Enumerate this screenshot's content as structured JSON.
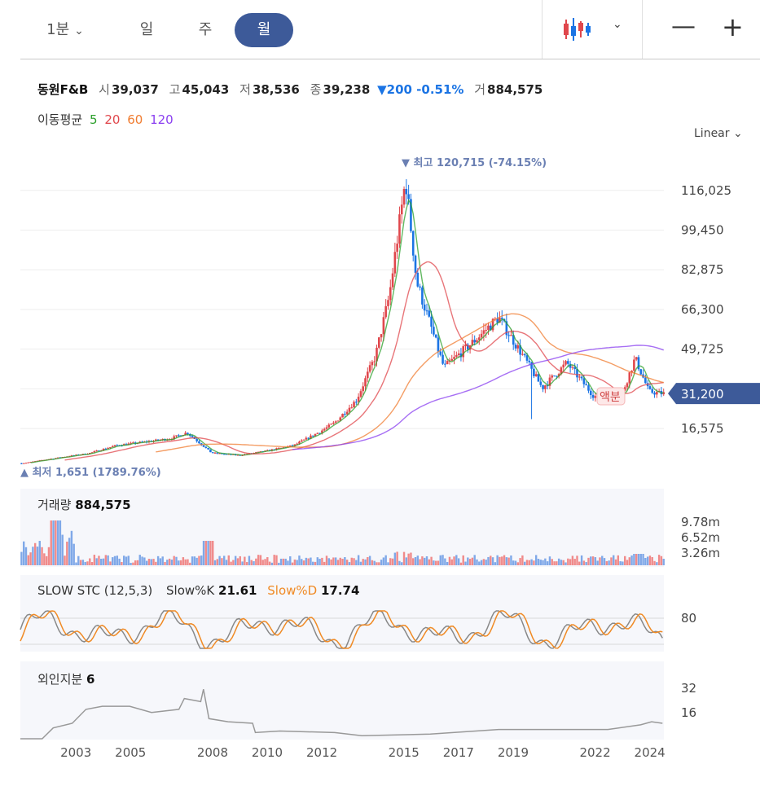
{
  "toolbar": {
    "period_label": "1분",
    "day_label": "일",
    "week_label": "주",
    "month_label": "월",
    "chart_type_icon": "candlestick-icon",
    "zoom_out_icon": "minus-icon",
    "zoom_in_icon": "plus-icon",
    "active_color": "#3d5a99"
  },
  "info": {
    "name": "동원F&B",
    "open_label": "시",
    "open": "39,037",
    "high_label": "고",
    "high": "45,043",
    "low_label": "저",
    "low": "38,536",
    "close_label": "종",
    "close": "39,238",
    "change": "▼200 -0.51%",
    "volume_label": "거",
    "volume": "884,575"
  },
  "moving_avg": {
    "label": "이동평균",
    "periods": [
      {
        "text": "5",
        "color": "#2ca02c"
      },
      {
        "text": "20",
        "color": "#e0474c"
      },
      {
        "text": "60",
        "color": "#f07c30"
      },
      {
        "text": "120",
        "color": "#8a3ff0"
      }
    ]
  },
  "scale_label": "Linear",
  "current_price_label": "31,200",
  "ex_dividend_label": "액분",
  "chart_data": {
    "type": "candlestick",
    "title": "동원F&B",
    "y_ticks": [
      "116,025",
      "99,450",
      "82,875",
      "66,300",
      "49,725",
      "16,575"
    ],
    "y_tick_values": [
      116025,
      99450,
      82875,
      66300,
      49725,
      16575
    ],
    "ylim": [
      1651,
      120715
    ],
    "x_ticks": [
      "2003",
      "2005",
      "2008",
      "2010",
      "2012",
      "2015",
      "2017",
      "2019",
      "2022",
      "2024"
    ],
    "x_tick_values": [
      2003,
      2005,
      2008,
      2010,
      2012,
      2015,
      2017,
      2019,
      2022,
      2024
    ],
    "max_annotation": "최고 120,715 (-74.15%)",
    "min_annotation": "최저 1,651 (1789.76%)",
    "price_series": [
      {
        "date": 2001.6,
        "close": 2100
      },
      {
        "date": 2003.0,
        "close": 4600
      },
      {
        "date": 2004.0,
        "close": 6200
      },
      {
        "date": 2005.0,
        "close": 9500
      },
      {
        "date": 2006.0,
        "close": 10900
      },
      {
        "date": 2007.0,
        "close": 12400
      },
      {
        "date": 2007.6,
        "close": 14900
      },
      {
        "date": 2008.5,
        "close": 6400
      },
      {
        "date": 2009.5,
        "close": 5400
      },
      {
        "date": 2010.5,
        "close": 7200
      },
      {
        "date": 2011.5,
        "close": 9500
      },
      {
        "date": 2012.5,
        "close": 15500
      },
      {
        "date": 2013.0,
        "close": 19000
      },
      {
        "date": 2013.8,
        "close": 28500
      },
      {
        "date": 2014.5,
        "close": 47000
      },
      {
        "date": 2015.0,
        "close": 72000
      },
      {
        "date": 2015.6,
        "close": 120715
      },
      {
        "date": 2016.0,
        "close": 78000
      },
      {
        "date": 2016.5,
        "close": 60000
      },
      {
        "date": 2017.0,
        "close": 42000
      },
      {
        "date": 2018.0,
        "close": 52000
      },
      {
        "date": 2019.0,
        "close": 63000
      },
      {
        "date": 2020.0,
        "close": 45000
      },
      {
        "date": 2020.6,
        "close": 33500
      },
      {
        "date": 2021.5,
        "close": 44000
      },
      {
        "date": 2022.5,
        "close": 30000
      },
      {
        "date": 2023.5,
        "close": 30500
      },
      {
        "date": 2024.0,
        "close": 46000
      },
      {
        "date": 2024.5,
        "close": 32000
      },
      {
        "date": 2025.0,
        "close": 31200
      }
    ],
    "volume": {
      "label": "거래량",
      "value": "884,575",
      "y_ticks": [
        "9.78m",
        "6.52m",
        "3.26m"
      ]
    },
    "stochastic": {
      "label": "SLOW STC (12,5,3)",
      "k_label": "Slow%K",
      "k_value": "21.61",
      "d_label": "Slow%D",
      "d_value": "17.74",
      "y_ticks": [
        "80"
      ]
    },
    "foreign": {
      "label": "외인지분",
      "value": "6",
      "y_ticks": [
        "32",
        "16"
      ]
    }
  }
}
